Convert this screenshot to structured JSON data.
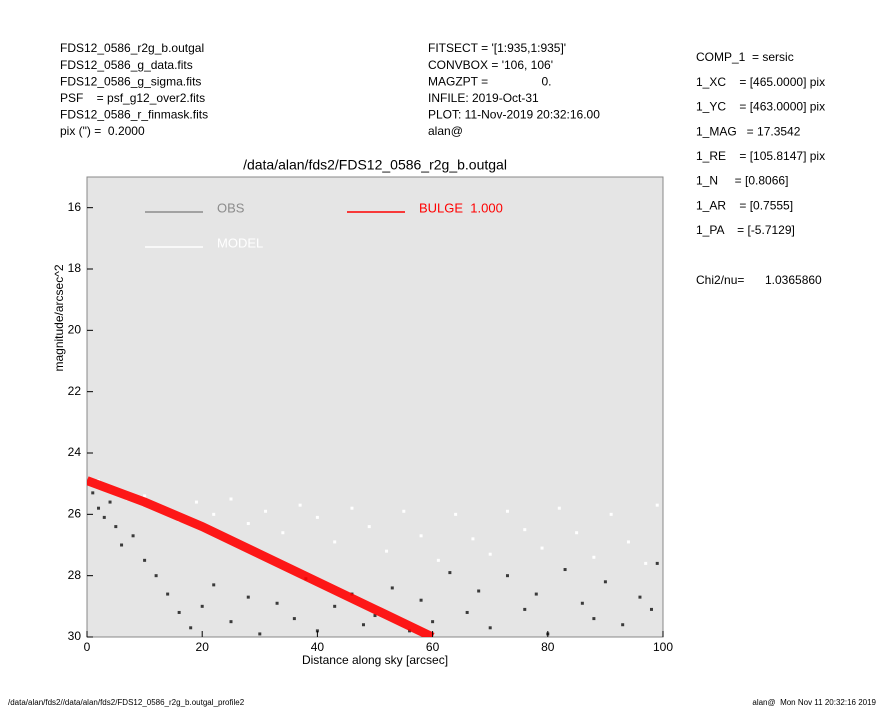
{
  "header_left": [
    "FDS12_0586_r2g_b.outgal",
    "FDS12_0586_g_data.fits",
    "FDS12_0586_g_sigma.fits",
    "PSF    = psf_g12_over2.fits",
    "FDS12_0586_r_finmask.fits",
    "pix (\") =  0.2000"
  ],
  "header_center": [
    "FITSECT = '[1:935,1:935]'",
    "CONVBOX = '106, 106'",
    "MAGZPT =                0.",
    "INFILE: 2019-Oct-31",
    "PLOT: 11-Nov-2019 20:32:16.00",
    "alan@"
  ],
  "params": [
    "COMP_1  = sersic",
    "1_XC    = [465.0000] pix",
    "1_YC    = [463.0000] pix",
    "1_MAG   = 17.3542",
    "1_RE    = [105.8147] pix",
    "1_N     = [0.8066]",
    "1_AR    = [0.7555]",
    "1_PA    = [-5.7129]"
  ],
  "chi2_label": "Chi2/nu=",
  "chi2_value": "1.0365860",
  "footer_left": "/data/alan/fds2//data/alan/fds2/FDS12_0586_r2g_b.outgal_profile2",
  "footer_right": "alan@  Mon Nov 11 20:32:16 2019",
  "chart_data": {
    "type": "scatter",
    "title": "/data/alan/fds2/FDS12_0586_r2g_b.outgal",
    "xlabel": "Distance along sky [arcsec]",
    "ylabel": "magnitude/arcsec^2",
    "xlim": [
      0,
      100
    ],
    "ylim": [
      15,
      30
    ],
    "y_inverted": true,
    "xticks": [
      0,
      20,
      40,
      60,
      80,
      100
    ],
    "yticks": [
      16,
      18,
      20,
      22,
      24,
      26,
      28,
      30
    ],
    "background": "#e5e5e5",
    "series": [
      {
        "name": "OBS",
        "color": "#8c8c8c",
        "point_color": "#3a3a3a",
        "mode": "points",
        "x": [
          1,
          2,
          3,
          4,
          5,
          6,
          8,
          10,
          12,
          14,
          16,
          18,
          20,
          22,
          25,
          28,
          30,
          33,
          36,
          38,
          40,
          43,
          46,
          48,
          50,
          53,
          56,
          58,
          60,
          63,
          66,
          68,
          70,
          73,
          76,
          78,
          80,
          83,
          86,
          88,
          90,
          93,
          96,
          98,
          99
        ],
        "values": [
          25.3,
          25.8,
          26.1,
          25.6,
          26.4,
          27.0,
          26.7,
          27.5,
          28.0,
          28.6,
          29.2,
          29.7,
          29.0,
          28.3,
          29.5,
          28.7,
          29.9,
          28.9,
          29.4,
          28.1,
          29.8,
          29.0,
          28.6,
          29.6,
          29.3,
          28.4,
          29.8,
          28.8,
          29.5,
          27.9,
          29.2,
          28.5,
          29.7,
          28.0,
          29.1,
          28.6,
          29.9,
          27.8,
          28.9,
          29.4,
          28.2,
          29.6,
          28.7,
          29.1,
          27.6
        ]
      },
      {
        "name": "MODEL",
        "color": "#ffffff",
        "point_color": "#ffffff",
        "mode": "points",
        "x": [
          2,
          4,
          7,
          10,
          13,
          16,
          19,
          22,
          25,
          28,
          31,
          34,
          37,
          40,
          43,
          46,
          49,
          52,
          55,
          58,
          61,
          64,
          67,
          70,
          73,
          76,
          79,
          82,
          85,
          88,
          91,
          94,
          97,
          99
        ],
        "values": [
          24.9,
          25.2,
          25.5,
          25.4,
          25.8,
          26.2,
          25.6,
          26.0,
          25.5,
          26.3,
          25.9,
          26.6,
          25.7,
          26.1,
          26.9,
          25.8,
          26.4,
          27.2,
          25.9,
          26.7,
          27.5,
          26.0,
          26.8,
          27.3,
          25.9,
          26.5,
          27.1,
          25.8,
          26.6,
          27.4,
          26.0,
          26.9,
          27.6,
          25.7
        ]
      },
      {
        "name": "BULGE  1.000",
        "color": "#ff0000",
        "point_color": "#ff0000",
        "mode": "band",
        "x": [
          0,
          10,
          20,
          30,
          40,
          50,
          60
        ],
        "values": [
          24.9,
          25.6,
          26.4,
          27.3,
          28.2,
          29.1,
          30.0
        ]
      }
    ]
  }
}
